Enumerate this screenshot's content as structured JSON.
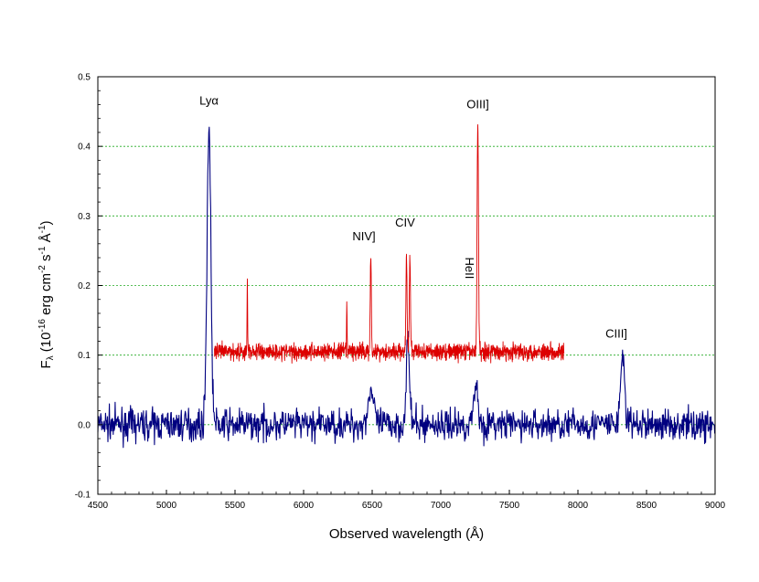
{
  "chart_data": {
    "type": "line",
    "xlabel": "Observed wavelength (Å)",
    "ylabel_parts": {
      "f": "F",
      "lambda": "λ",
      "open": " (10",
      "exp1": "-16",
      "mid1": " erg cm",
      "exp2": "-2",
      "mid2": " s",
      "exp3": "-1",
      "mid3": " Å",
      "exp4": "-1",
      "close": ")"
    },
    "xlim": [
      4500,
      9000
    ],
    "ylim": [
      -0.1,
      0.5
    ],
    "x_ticks": [
      4500,
      5000,
      5500,
      6000,
      6500,
      7000,
      7500,
      8000,
      8500,
      9000
    ],
    "x_tick_labels": [
      "4500",
      "5000",
      "5500",
      "6000",
      "6500",
      "7000",
      "7500",
      "8000",
      "8500",
      "9000"
    ],
    "y_ticks": [
      -0.1,
      0.0,
      0.1,
      0.2,
      0.3,
      0.4,
      0.5
    ],
    "y_tick_labels": [
      "-0.1",
      "0.0",
      "0.1",
      "0.2",
      "0.3",
      "0.4",
      "0.5"
    ],
    "grid": true,
    "grid_color": "#22aa22",
    "series": [
      {
        "color": "#000080",
        "x_range": [
          4500,
          9000
        ],
        "continuum": 0.0,
        "noise": 0.022,
        "peaks": [
          {
            "x": 5310,
            "y": 0.43,
            "width": 14
          },
          {
            "x": 6490,
            "y": 0.05,
            "width": 20
          },
          {
            "x": 6760,
            "y": 0.12,
            "width": 12
          },
          {
            "x": 7255,
            "y": 0.06,
            "width": 15
          },
          {
            "x": 8325,
            "y": 0.1,
            "width": 15
          }
        ]
      },
      {
        "color": "#dd0000",
        "x_range": [
          5350,
          7900
        ],
        "continuum": 0.105,
        "noise": 0.012,
        "peaks": [
          {
            "x": 5590,
            "y": 0.21,
            "width": 2
          },
          {
            "x": 6315,
            "y": 0.175,
            "width": 2
          },
          {
            "x": 6490,
            "y": 0.245,
            "width": 4
          },
          {
            "x": 6750,
            "y": 0.245,
            "width": 4
          },
          {
            "x": 6775,
            "y": 0.245,
            "width": 4
          },
          {
            "x": 7270,
            "y": 0.435,
            "width": 5
          }
        ]
      }
    ],
    "annotations": [
      {
        "text": "Lyα",
        "x": 5310,
        "y": 0.46,
        "rotate": false
      },
      {
        "text": "OIII]",
        "x": 7270,
        "y": 0.455,
        "rotate": false
      },
      {
        "text": "CIV",
        "x": 6740,
        "y": 0.285,
        "rotate": false
      },
      {
        "text": "NIV]",
        "x": 6440,
        "y": 0.265,
        "rotate": false
      },
      {
        "text": "HeII",
        "x": 7180,
        "y": 0.225,
        "rotate": true
      },
      {
        "text": "CIII]",
        "x": 8280,
        "y": 0.125,
        "rotate": false
      }
    ]
  }
}
